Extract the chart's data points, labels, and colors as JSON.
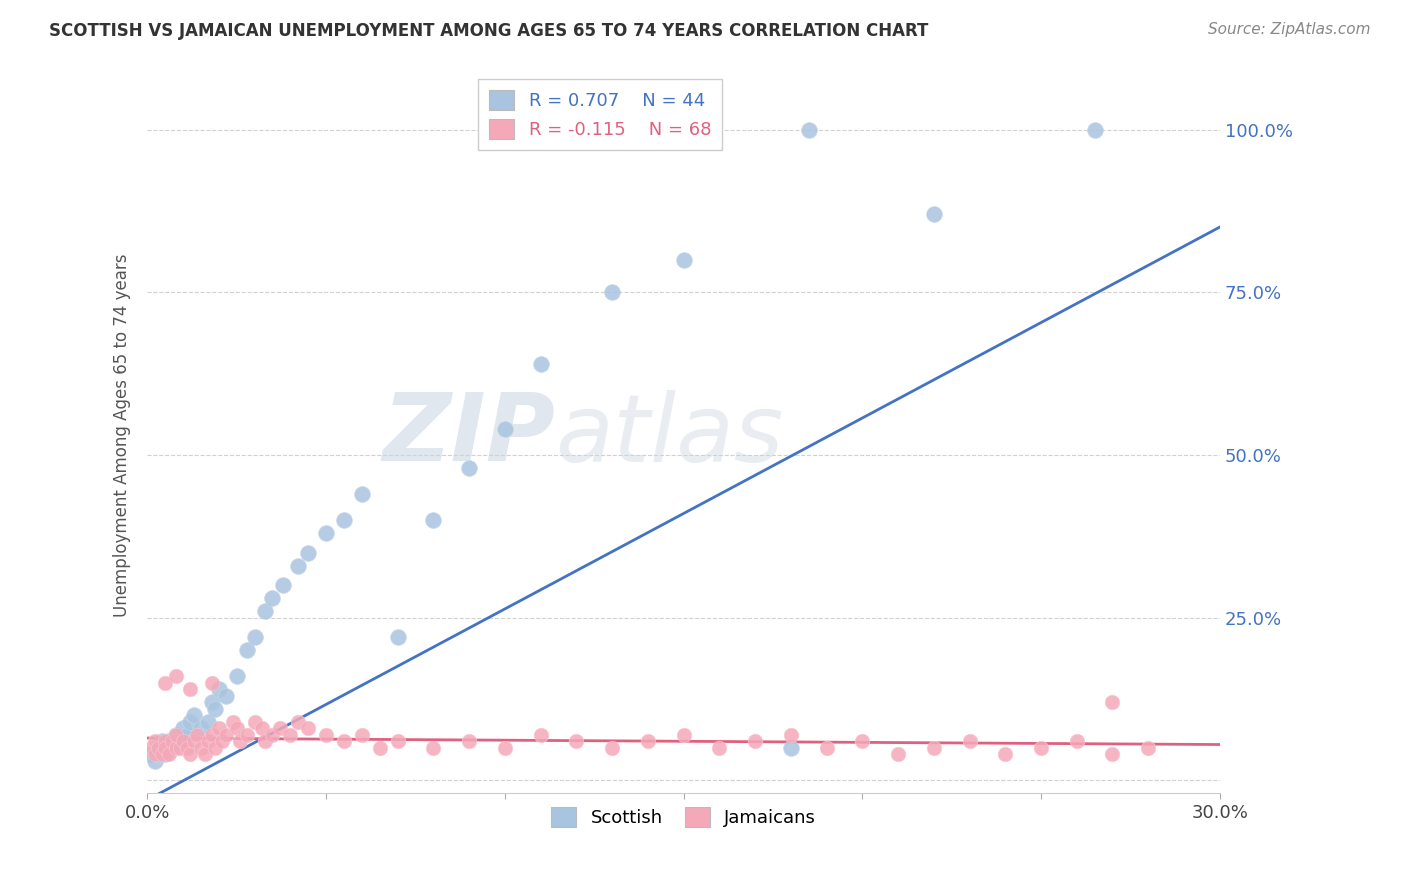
{
  "title": "SCOTTISH VS JAMAICAN UNEMPLOYMENT AMONG AGES 65 TO 74 YEARS CORRELATION CHART",
  "source": "Source: ZipAtlas.com",
  "ylabel": "Unemployment Among Ages 65 to 74 years",
  "xlim": [
    0.0,
    0.3
  ],
  "ylim": [
    -0.02,
    1.08
  ],
  "xtick_positions": [
    0.0,
    0.05,
    0.1,
    0.15,
    0.2,
    0.25,
    0.3
  ],
  "xtick_labels": [
    "0.0%",
    "",
    "",
    "",
    "",
    "",
    "30.0%"
  ],
  "ytick_positions": [
    0.0,
    0.25,
    0.5,
    0.75,
    1.0
  ],
  "ytick_labels": [
    "",
    "25.0%",
    "50.0%",
    "75.0%",
    "100.0%"
  ],
  "grid_color": "#cccccc",
  "background_color": "#ffffff",
  "scottish_color": "#a8c4e0",
  "jamaican_color": "#f4a8b8",
  "scottish_line_color": "#4472c4",
  "jamaican_line_color": "#e06080",
  "R_scottish": 0.707,
  "N_scottish": 44,
  "R_jamaican": -0.115,
  "N_jamaican": 68,
  "scottish_x": [
    0.001,
    0.002,
    0.003,
    0.003,
    0.004,
    0.005,
    0.005,
    0.006,
    0.007,
    0.008,
    0.009,
    0.01,
    0.011,
    0.012,
    0.013,
    0.015,
    0.017,
    0.018,
    0.019,
    0.02,
    0.022,
    0.025,
    0.028,
    0.03,
    0.033,
    0.035,
    0.038,
    0.042,
    0.045,
    0.05,
    0.055,
    0.06,
    0.07,
    0.08,
    0.09,
    0.1,
    0.11,
    0.13,
    0.15,
    0.155,
    0.18,
    0.185,
    0.22,
    0.265
  ],
  "scottish_y": [
    0.04,
    0.03,
    0.05,
    0.04,
    0.06,
    0.05,
    0.04,
    0.06,
    0.05,
    0.07,
    0.06,
    0.08,
    0.07,
    0.09,
    0.1,
    0.08,
    0.09,
    0.12,
    0.11,
    0.14,
    0.13,
    0.16,
    0.2,
    0.22,
    0.26,
    0.28,
    0.3,
    0.33,
    0.35,
    0.38,
    0.4,
    0.44,
    0.22,
    0.4,
    0.48,
    0.54,
    0.64,
    0.75,
    0.8,
    1.0,
    0.05,
    1.0,
    0.87,
    1.0
  ],
  "jamaican_x": [
    0.001,
    0.002,
    0.002,
    0.003,
    0.004,
    0.005,
    0.005,
    0.006,
    0.007,
    0.008,
    0.008,
    0.009,
    0.01,
    0.011,
    0.012,
    0.013,
    0.014,
    0.015,
    0.016,
    0.017,
    0.018,
    0.019,
    0.02,
    0.021,
    0.022,
    0.024,
    0.025,
    0.026,
    0.028,
    0.03,
    0.032,
    0.033,
    0.035,
    0.037,
    0.04,
    0.042,
    0.045,
    0.05,
    0.055,
    0.06,
    0.065,
    0.07,
    0.08,
    0.09,
    0.1,
    0.11,
    0.12,
    0.13,
    0.14,
    0.15,
    0.16,
    0.17,
    0.18,
    0.19,
    0.2,
    0.21,
    0.22,
    0.23,
    0.24,
    0.25,
    0.26,
    0.27,
    0.28,
    0.005,
    0.008,
    0.012,
    0.018,
    0.27
  ],
  "jamaican_y": [
    0.05,
    0.04,
    0.06,
    0.05,
    0.04,
    0.06,
    0.05,
    0.04,
    0.06,
    0.05,
    0.07,
    0.05,
    0.06,
    0.05,
    0.04,
    0.06,
    0.07,
    0.05,
    0.04,
    0.06,
    0.07,
    0.05,
    0.08,
    0.06,
    0.07,
    0.09,
    0.08,
    0.06,
    0.07,
    0.09,
    0.08,
    0.06,
    0.07,
    0.08,
    0.07,
    0.09,
    0.08,
    0.07,
    0.06,
    0.07,
    0.05,
    0.06,
    0.05,
    0.06,
    0.05,
    0.07,
    0.06,
    0.05,
    0.06,
    0.07,
    0.05,
    0.06,
    0.07,
    0.05,
    0.06,
    0.04,
    0.05,
    0.06,
    0.04,
    0.05,
    0.06,
    0.04,
    0.05,
    0.15,
    0.16,
    0.14,
    0.15,
    0.12
  ],
  "scottish_regline_x": [
    0.0,
    0.3
  ],
  "scottish_regline_y": [
    -0.03,
    0.85
  ],
  "jamaican_regline_x": [
    0.0,
    0.3
  ],
  "jamaican_regline_y": [
    0.065,
    0.055
  ]
}
